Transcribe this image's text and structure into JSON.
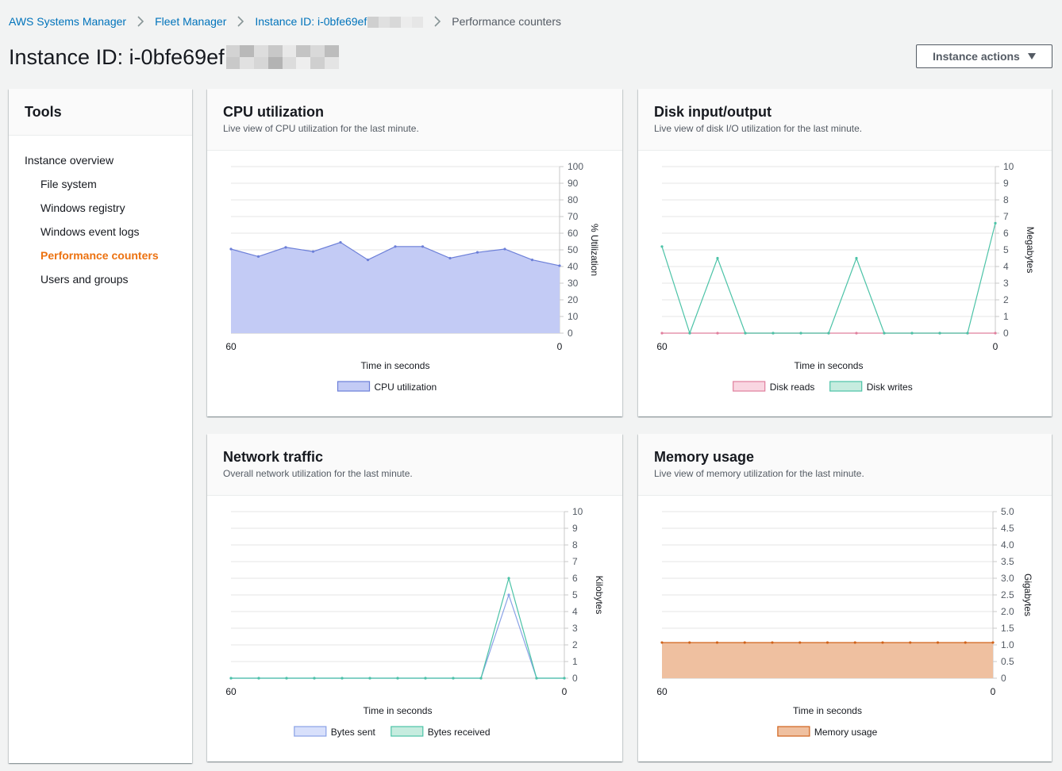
{
  "breadcrumb": {
    "items": [
      "AWS Systems Manager",
      "Fleet Manager",
      "Instance ID: i-0bfe69ef"
    ],
    "current": "Performance counters"
  },
  "header": {
    "title": "Instance ID: i-0bfe69ef",
    "actions_label": "Instance actions"
  },
  "tools": {
    "title": "Tools",
    "items": [
      {
        "label": "Instance overview",
        "level": 0,
        "active": false
      },
      {
        "label": "File system",
        "level": 1,
        "active": false
      },
      {
        "label": "Windows registry",
        "level": 1,
        "active": false
      },
      {
        "label": "Windows event logs",
        "level": 1,
        "active": false
      },
      {
        "label": "Performance counters",
        "level": 1,
        "active": true
      },
      {
        "label": "Users and groups",
        "level": 1,
        "active": false
      }
    ]
  },
  "colors": {
    "link": "#0073bb",
    "active": "#ec7211"
  },
  "cards": [
    {
      "title": "CPU utilization",
      "description": "Live view of CPU utilization for the last minute."
    },
    {
      "title": "Disk input/output",
      "description": "Live view of disk I/O utilization for the last minute."
    },
    {
      "title": "Network traffic",
      "description": "Overall network utilization for the last minute."
    },
    {
      "title": "Memory usage",
      "description": "Live view of memory utilization for the last minute."
    }
  ],
  "chart_data": [
    {
      "type": "area",
      "xlabel": "Time in seconds",
      "ylabel": "% Utilization",
      "x": [
        60,
        55,
        50,
        45,
        40,
        35,
        30,
        25,
        20,
        15,
        10,
        5,
        0
      ],
      "xticks": [
        "60",
        "0"
      ],
      "ylim": [
        0,
        100
      ],
      "yticks": [
        "0",
        "10",
        "20",
        "30",
        "40",
        "50",
        "60",
        "70",
        "80",
        "90",
        "100"
      ],
      "grid": true,
      "legend": "bottom",
      "series": [
        {
          "name": "CPU utilization",
          "values": [
            50.5,
            46,
            51.5,
            49,
            54.5,
            44,
            52,
            52,
            45,
            48.5,
            50.5,
            44,
            40.5
          ],
          "color": "#6c7fd8",
          "fill": "#c3cbf5",
          "filled": true
        }
      ]
    },
    {
      "type": "line",
      "xlabel": "Time in seconds",
      "ylabel": "Megabytes",
      "x": [
        60,
        55,
        50,
        45,
        40,
        35,
        30,
        25,
        20,
        15,
        10,
        5,
        0
      ],
      "xticks": [
        "60",
        "0"
      ],
      "ylim": [
        0,
        10
      ],
      "yticks": [
        "0",
        "1",
        "2",
        "3",
        "4",
        "5",
        "6",
        "7",
        "8",
        "9",
        "10"
      ],
      "grid": true,
      "legend": "bottom",
      "series": [
        {
          "name": "Disk reads",
          "values": [
            0,
            0,
            0,
            0,
            0,
            0,
            0,
            0,
            0,
            0,
            0,
            0,
            0
          ],
          "color": "#e07f9d",
          "fill": "#f9d6e1",
          "filled": false
        },
        {
          "name": "Disk writes",
          "values": [
            5.2,
            0,
            4.5,
            0,
            0,
            0,
            0,
            4.5,
            0,
            0,
            0,
            0,
            6.6
          ],
          "color": "#4cc3a7",
          "fill": "#c6ecdf",
          "filled": false
        }
      ]
    },
    {
      "type": "line",
      "xlabel": "Time in seconds",
      "ylabel": "Kilobytes",
      "x": [
        60,
        55,
        50,
        45,
        40,
        35,
        30,
        25,
        20,
        15,
        10,
        5,
        0
      ],
      "xticks": [
        "60",
        "0"
      ],
      "ylim": [
        0,
        10
      ],
      "yticks": [
        "0",
        "1",
        "2",
        "3",
        "4",
        "5",
        "6",
        "7",
        "8",
        "9",
        "10"
      ],
      "grid": true,
      "legend": "bottom",
      "series": [
        {
          "name": "Bytes sent",
          "values": [
            0,
            0,
            0,
            0,
            0,
            0,
            0,
            0,
            0,
            0,
            5,
            0,
            0
          ],
          "color": "#8aa2e6",
          "fill": "#d8e0fb",
          "filled": false
        },
        {
          "name": "Bytes received",
          "values": [
            0,
            0,
            0,
            0,
            0,
            0,
            0,
            0,
            0,
            0,
            6,
            0,
            0
          ],
          "color": "#4cc3a7",
          "fill": "#c6ecdf",
          "filled": false
        }
      ]
    },
    {
      "type": "area",
      "xlabel": "Time in seconds",
      "ylabel": "Gigabytes",
      "x": [
        60,
        55,
        50,
        45,
        40,
        35,
        30,
        25,
        20,
        15,
        10,
        5,
        0
      ],
      "xticks": [
        "60",
        "0"
      ],
      "ylim": [
        0,
        5
      ],
      "yticks": [
        "0",
        "0.5",
        "1.0",
        "1.5",
        "2.0",
        "2.5",
        "3.0",
        "3.5",
        "4.0",
        "4.5",
        "5.0"
      ],
      "grid": true,
      "legend": "bottom",
      "series": [
        {
          "name": "Memory usage",
          "values": [
            1.07,
            1.07,
            1.07,
            1.07,
            1.07,
            1.07,
            1.07,
            1.07,
            1.07,
            1.07,
            1.07,
            1.07,
            1.07
          ],
          "color": "#d0621a",
          "fill": "#efc0a0",
          "filled": true
        }
      ]
    }
  ]
}
